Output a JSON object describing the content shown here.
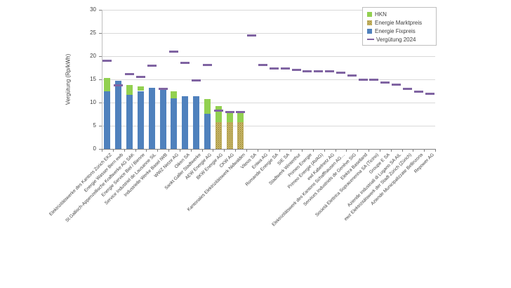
{
  "chart": {
    "legend": [
      {
        "label": "HKN",
        "color": "#92D050",
        "swatch": "square",
        "pattern": false
      },
      {
        "label": "Energie Marktpreis",
        "color": "#BFA73F",
        "swatch": "square",
        "pattern": true
      },
      {
        "label": "Energie Fixpreis",
        "color": "#4F81BD",
        "swatch": "square",
        "pattern": false
      },
      {
        "label": "Vergütung 2024",
        "color": "#8064A2",
        "swatch": "dash",
        "pattern": false
      }
    ]
  },
  "chart_data": {
    "type": "bar",
    "stacked": true,
    "title": "",
    "xlabel": "",
    "ylabel": "Vergütung (Rp/kWh)",
    "ylim": [
      0,
      30
    ],
    "yticks": [
      0,
      5,
      10,
      15,
      20,
      25,
      30
    ],
    "grid": true,
    "legend_position": "top-right",
    "categories": [
      "Elektrizitätswerke des Kantons Zürich EKZ",
      "Energie Wasser Bern ewb",
      "St.Gallisch-Appenzellische Kraftwerke AG SAK",
      "Energie Service Biel / Bienne",
      "Service Industriel de Lausanne SiL",
      "Industrielle Werke Basel IWB",
      "WWZ Netze AG",
      "Oiken SA",
      "Sankt Galler Stadtwerke",
      "AEW Energie AG",
      "BKW Energie AG",
      "CKW AG",
      "Kantonales Elektrizitätswerk Nidwalden",
      "Viteos SA",
      "Eniwa AG",
      "Romande Energie SA",
      "SIE SA",
      "Stadtwerk Winterthur",
      "Primeo Energie",
      "Primeo Energie (AVAG)",
      "ewl Kabelnetz AG",
      "Elektrizitätswerk des Kantons Schaffhausen AG…",
      "Services Industriels de Genève SIG",
      "Elektra Baselland",
      "Società Elettrica Sopracenerina SA (Ticino)",
      "Groupe E SA",
      "Aziende Industriali di Lugano SA AIL",
      "ewz Elektrizitätswerk der Stadt Zürich (Zürich)",
      "Aziende Municipalizzate Bellinzona",
      "Repower AG"
    ],
    "series": [
      {
        "name": "Energie Fixpreis",
        "type": "bar",
        "color": "#4F81BD",
        "pattern": false,
        "values": [
          12.4,
          14.7,
          11.6,
          12.5,
          13.2,
          13.1,
          10.9,
          11.3,
          11.3,
          7.6,
          0,
          0,
          0,
          0,
          0,
          0,
          0,
          0,
          0,
          0,
          0,
          0,
          0,
          0,
          0,
          0,
          0,
          0,
          0,
          0
        ]
      },
      {
        "name": "Energie Marktpreis",
        "type": "bar",
        "color": "#BFA73F",
        "pattern": true,
        "values": [
          0,
          0,
          0,
          0,
          0,
          0,
          0,
          0,
          0,
          0,
          5.7,
          5.7,
          5.7,
          0,
          0,
          0,
          0,
          0,
          0,
          0,
          0,
          0,
          0,
          0,
          0,
          0,
          0,
          0,
          0,
          0
        ]
      },
      {
        "name": "HKN",
        "type": "bar",
        "color": "#92D050",
        "pattern": false,
        "values": [
          2.9,
          0,
          2.2,
          1.0,
          0,
          0,
          1.6,
          0,
          0,
          3.1,
          3.6,
          2.1,
          2.1,
          0,
          0,
          0,
          0,
          0,
          0,
          0,
          0,
          0,
          0,
          0,
          0,
          0,
          0,
          0,
          0,
          0
        ]
      },
      {
        "name": "Vergütung 2024",
        "type": "marker",
        "color": "#8064A2",
        "pattern": false,
        "values": [
          19.0,
          13.7,
          16.2,
          15.5,
          18.0,
          13.0,
          21.0,
          18.5,
          14.7,
          18.1,
          8.2,
          7.9,
          7.9,
          24.5,
          18.1,
          17.3,
          17.3,
          17.0,
          16.7,
          16.7,
          16.7,
          16.4,
          15.9,
          14.9,
          14.9,
          14.3,
          13.9,
          12.9,
          12.4,
          11.9
        ]
      }
    ]
  }
}
